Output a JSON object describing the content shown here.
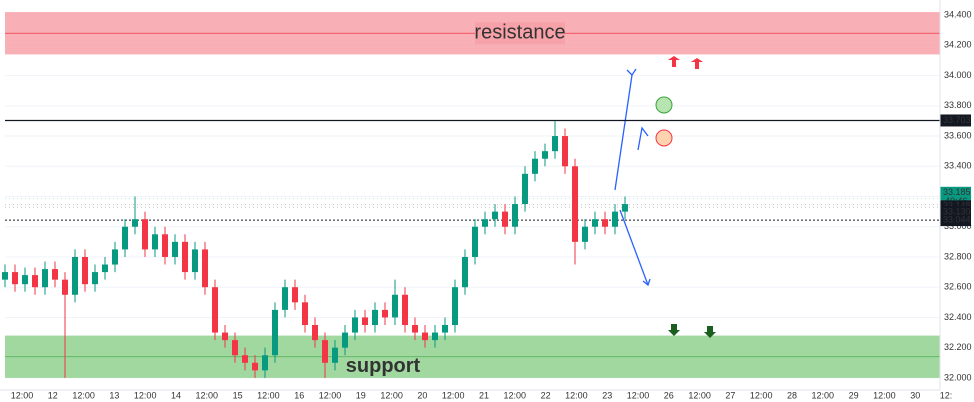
{
  "chart_data": {
    "type": "candlestick",
    "ylim": [
      31.92,
      34.5
    ],
    "yticks": [
      {
        "value": 32.0,
        "label": "32.000"
      },
      {
        "value": 32.2,
        "label": "32.200"
      },
      {
        "value": 32.4,
        "label": "32.400"
      },
      {
        "value": 32.6,
        "label": "32.600"
      },
      {
        "value": 32.8,
        "label": "32.800"
      },
      {
        "value": 33.0,
        "label": "33.000"
      },
      {
        "value": 33.2,
        "label": "33.200"
      },
      {
        "value": 33.4,
        "label": "33.400"
      },
      {
        "value": 33.6,
        "label": "33.600"
      },
      {
        "value": 33.8,
        "label": "33.800"
      },
      {
        "value": 34.0,
        "label": "34.000"
      },
      {
        "value": 34.2,
        "label": "34.200"
      },
      {
        "value": 34.4,
        "label": "34.400"
      }
    ],
    "x_labels": [
      "12:00",
      "12",
      "12:00",
      "13",
      "12:00",
      "14",
      "12:00",
      "15",
      "12:00",
      "16",
      "12:00",
      "19",
      "12:00",
      "20",
      "12:00",
      "21",
      "12:00",
      "22",
      "12:00",
      "23",
      "12:00",
      "26",
      "12:00",
      "27",
      "12:00",
      "28",
      "12:00",
      "29",
      "12:00",
      "30",
      "12:"
    ],
    "up_color": "#089981",
    "down_color": "#f23645",
    "open": [
      32.65,
      32.7,
      32.62,
      32.68,
      32.6,
      32.72,
      32.65,
      32.55,
      32.8,
      32.62,
      32.7,
      32.75,
      32.85,
      33.0,
      33.05,
      32.85,
      32.95,
      32.8,
      32.9,
      32.7,
      32.85,
      32.6,
      32.3,
      32.25,
      32.15,
      32.1,
      32.05,
      32.15,
      32.45,
      32.6,
      32.5,
      32.35,
      32.25,
      32.1,
      32.2,
      32.3,
      32.4,
      32.35,
      32.45,
      32.4,
      32.55,
      32.35,
      32.3,
      32.25,
      32.3,
      32.35,
      32.6,
      32.8,
      33.0,
      33.05,
      33.1,
      33.0,
      33.15,
      33.35,
      33.45,
      33.5,
      33.6,
      33.4,
      32.9,
      33.0,
      33.05,
      33.0,
      33.1
    ],
    "high": [
      32.75,
      32.75,
      32.73,
      32.73,
      32.77,
      32.77,
      32.7,
      32.85,
      32.85,
      32.75,
      32.8,
      32.9,
      33.05,
      33.2,
      33.1,
      33.0,
      33.0,
      32.95,
      32.95,
      32.9,
      32.9,
      32.65,
      32.35,
      32.3,
      32.2,
      32.15,
      32.2,
      32.5,
      32.65,
      32.65,
      32.55,
      32.4,
      32.3,
      32.25,
      32.35,
      32.45,
      32.45,
      32.5,
      32.5,
      32.65,
      32.6,
      32.4,
      32.35,
      32.35,
      32.4,
      32.65,
      32.85,
      33.05,
      33.1,
      33.15,
      33.15,
      33.2,
      33.4,
      33.5,
      33.55,
      33.7,
      33.65,
      33.45,
      33.05,
      33.1,
      33.1,
      33.15,
      33.2
    ],
    "low": [
      32.6,
      32.57,
      32.57,
      32.55,
      32.55,
      32.6,
      32.0,
      32.5,
      32.57,
      32.57,
      32.65,
      32.7,
      32.8,
      32.95,
      32.8,
      32.8,
      32.75,
      32.75,
      32.65,
      32.65,
      32.55,
      32.25,
      32.2,
      32.1,
      32.05,
      32.0,
      32.0,
      32.1,
      32.4,
      32.45,
      32.3,
      32.2,
      32.0,
      32.05,
      32.15,
      32.25,
      32.3,
      32.3,
      32.35,
      32.35,
      32.3,
      32.25,
      32.2,
      32.2,
      32.25,
      32.3,
      32.55,
      32.75,
      32.95,
      33.0,
      32.95,
      32.95,
      33.1,
      33.3,
      33.4,
      33.45,
      33.35,
      32.75,
      32.85,
      32.95,
      32.95,
      32.95,
      33.05
    ],
    "close": [
      32.7,
      32.62,
      32.68,
      32.6,
      32.72,
      32.65,
      32.55,
      32.8,
      32.62,
      32.7,
      32.75,
      32.85,
      33.0,
      33.05,
      32.85,
      32.95,
      32.8,
      32.9,
      32.7,
      32.85,
      32.6,
      32.3,
      32.25,
      32.15,
      32.1,
      32.05,
      32.15,
      32.45,
      32.6,
      32.5,
      32.35,
      32.25,
      32.1,
      32.2,
      32.3,
      32.4,
      32.35,
      32.45,
      32.4,
      32.55,
      32.35,
      32.3,
      32.25,
      32.3,
      32.35,
      32.6,
      32.8,
      33.0,
      33.05,
      33.1,
      33.0,
      33.15,
      33.35,
      33.45,
      33.5,
      33.6,
      33.4,
      32.9,
      33.0,
      33.05,
      33.0,
      33.1,
      33.15
    ],
    "zones": [
      {
        "label": "resistance",
        "range": [
          34.14,
          34.42
        ],
        "color": "#f7a1a9"
      },
      {
        "label": "support",
        "range": [
          32.0,
          32.28
        ],
        "color": "#8fd18f"
      }
    ],
    "levels": [
      {
        "value": 33.703,
        "label": "33.703",
        "color": "#131722",
        "dash": false
      },
      {
        "value": 33.044,
        "label": "33.044",
        "color": "#131722",
        "dash": true
      }
    ],
    "price_badges": [
      {
        "value": 33.185,
        "label": "33.185",
        "color": "#089981"
      },
      {
        "value": 33.148,
        "label": "33.148",
        "color": "#131722"
      },
      {
        "value": 33.13,
        "label": "33.130",
        "color": "#131722"
      }
    ],
    "countdown": "40:46"
  }
}
